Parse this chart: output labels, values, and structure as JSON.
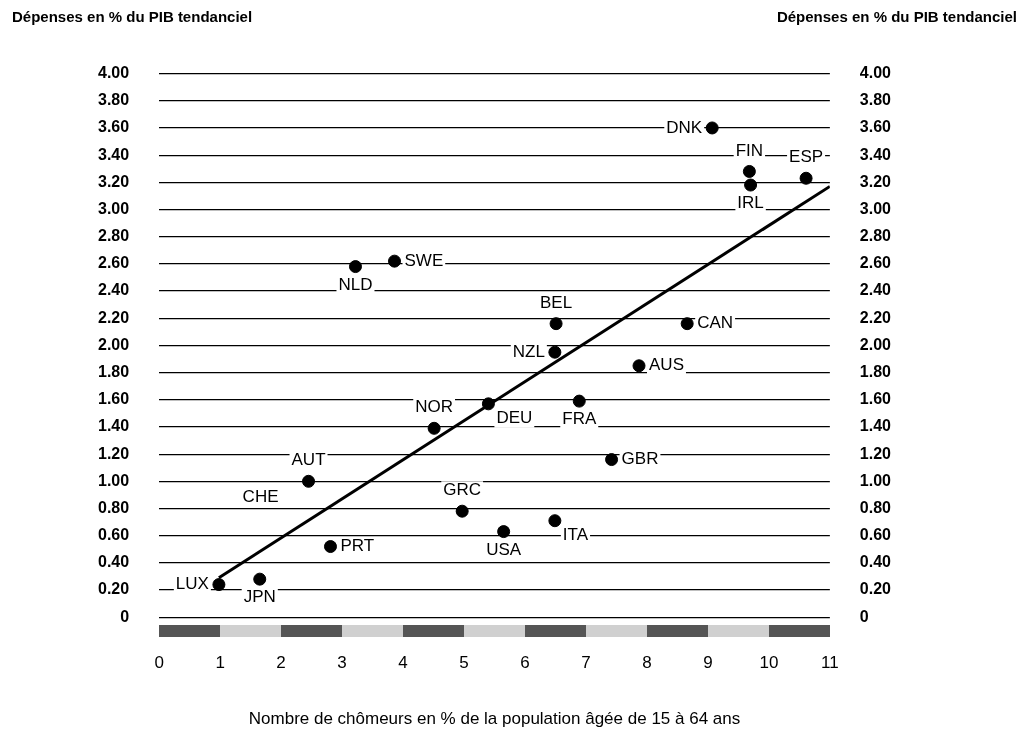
{
  "chart_data": {
    "type": "scatter",
    "xlabel": "Nombre de chômeurs en % de la population âgée de 15 à 64 ans",
    "ylabel": "Dépenses en % du PIB tendanciel",
    "y2label": "Dépenses en % du PIB tendanciel",
    "xlim": [
      0,
      11
    ],
    "xticks": [
      0,
      1,
      2,
      3,
      4,
      5,
      6,
      7,
      8,
      9,
      10,
      11
    ],
    "ylim": [
      0,
      4
    ],
    "yticks": [
      0,
      {
        "value": 0.2,
        "label": "0.20"
      },
      {
        "value": 0.4,
        "label": "0.40"
      },
      {
        "value": 0.6,
        "label": "0.60"
      },
      {
        "value": 0.8,
        "label": "0.80"
      },
      {
        "value": 1,
        "label": "1.00"
      },
      {
        "value": 1.2,
        "label": "1.20"
      },
      {
        "value": 1.4,
        "label": "1.40"
      },
      {
        "value": 1.6,
        "label": "1.60"
      },
      {
        "value": 1.8,
        "label": "1.80"
      },
      {
        "value": 2,
        "label": "2.00"
      },
      {
        "value": 2.2,
        "label": "2.20"
      },
      {
        "value": 2.4,
        "label": "2.40"
      },
      {
        "value": 2.6,
        "label": "2.60"
      },
      {
        "value": 2.8,
        "label": "2.80"
      },
      {
        "value": 3,
        "label": "3.00"
      },
      {
        "value": 3.2,
        "label": "3.20"
      },
      {
        "value": 3.4,
        "label": "3.40"
      },
      {
        "value": 3.6,
        "label": "3.60"
      },
      {
        "value": 3.8,
        "label": "3.80"
      },
      {
        "value": 4,
        "label": "4.00"
      }
    ],
    "y2lim": [
      0,
      4
    ],
    "y2ticks": [
      0,
      {
        "value": 0.2,
        "label": "0.20"
      },
      {
        "value": 0.4,
        "label": "0.40"
      },
      {
        "value": 0.6,
        "label": "0.60"
      },
      {
        "value": 0.8,
        "label": "0.80"
      },
      {
        "value": 1,
        "label": "1.00"
      },
      {
        "value": 1.2,
        "label": "1.20"
      },
      {
        "value": 1.4,
        "label": "1.40"
      },
      {
        "value": 1.6,
        "label": "1.60"
      },
      {
        "value": 1.8,
        "label": "1.80"
      },
      {
        "value": 2,
        "label": "2.00"
      },
      {
        "value": 2.2,
        "label": "2.20"
      },
      {
        "value": 2.4,
        "label": "2.40"
      },
      {
        "value": 2.6,
        "label": "2.60"
      },
      {
        "value": 2.8,
        "label": "2.80"
      },
      {
        "value": 3,
        "label": "3.00"
      },
      {
        "value": 3.2,
        "label": "3.20"
      },
      {
        "value": 3.4,
        "label": "3.40"
      },
      {
        "value": 3.6,
        "label": "3.60"
      },
      {
        "value": 3.8,
        "label": "3.80"
      },
      {
        "value": 4,
        "label": "4.00"
      }
    ],
    "grid": "y",
    "legend": false,
    "marker": "circle",
    "series": [
      {
        "type": "scatter",
        "color": "#000000",
        "x": [
          0.98,
          1.65,
          2.81,
          2.45,
          4.51,
          5.4,
          6.49,
          6.51,
          4.97,
          5.65,
          6.49,
          6.89,
          7.87,
          7.42,
          8.66,
          3.22,
          3.86,
          9.07,
          9.68,
          9.7,
          10.61
        ],
        "values": [
          0.24,
          0.28,
          0.52,
          1.0,
          1.39,
          1.57,
          1.95,
          2.16,
          0.78,
          0.63,
          0.71,
          1.59,
          1.85,
          1.16,
          2.16,
          2.58,
          2.62,
          3.6,
          3.28,
          3.18,
          3.23
        ]
      },
      {
        "type": "line",
        "color": "#000000",
        "marker": "none",
        "line_style": "solid",
        "x": [
          0.98,
          11
        ],
        "values": [
          0.29,
          3.17
        ]
      }
    ],
    "annotations": [
      {
        "text": "LUX",
        "x": 0.98,
        "y": 0.24
      },
      {
        "text": "JPN",
        "x": 1.65,
        "y": 0.28
      },
      {
        "text": "PRT",
        "x": 2.81,
        "y": 0.52
      },
      {
        "text": "AUT",
        "x": 2.45,
        "y": 1.0
      },
      {
        "text": "CHE",
        "x": 2.45,
        "y": 1.0
      },
      {
        "text": "NOR",
        "x": 4.51,
        "y": 1.39
      },
      {
        "text": "DEU",
        "x": 5.4,
        "y": 1.57
      },
      {
        "text": "NZL",
        "x": 6.49,
        "y": 1.95
      },
      {
        "text": "BEL",
        "x": 6.51,
        "y": 2.16
      },
      {
        "text": "GRC",
        "x": 4.97,
        "y": 0.78
      },
      {
        "text": "USA",
        "x": 5.65,
        "y": 0.63
      },
      {
        "text": "ITA",
        "x": 6.49,
        "y": 0.71
      },
      {
        "text": "FRA",
        "x": 6.89,
        "y": 1.59
      },
      {
        "text": "AUS",
        "x": 7.87,
        "y": 1.85
      },
      {
        "text": "GBR",
        "x": 7.42,
        "y": 1.16
      },
      {
        "text": "CAN",
        "x": 8.66,
        "y": 2.16
      },
      {
        "text": "NLD",
        "x": 3.22,
        "y": 2.58
      },
      {
        "text": "SWE",
        "x": 3.86,
        "y": 2.62
      },
      {
        "text": "DNK",
        "x": 9.07,
        "y": 3.6
      },
      {
        "text": "FIN",
        "x": 9.68,
        "y": 3.28
      },
      {
        "text": "IRL",
        "x": 9.7,
        "y": 3.18
      },
      {
        "text": "ESP",
        "x": 10.61,
        "y": 3.23
      }
    ]
  }
}
